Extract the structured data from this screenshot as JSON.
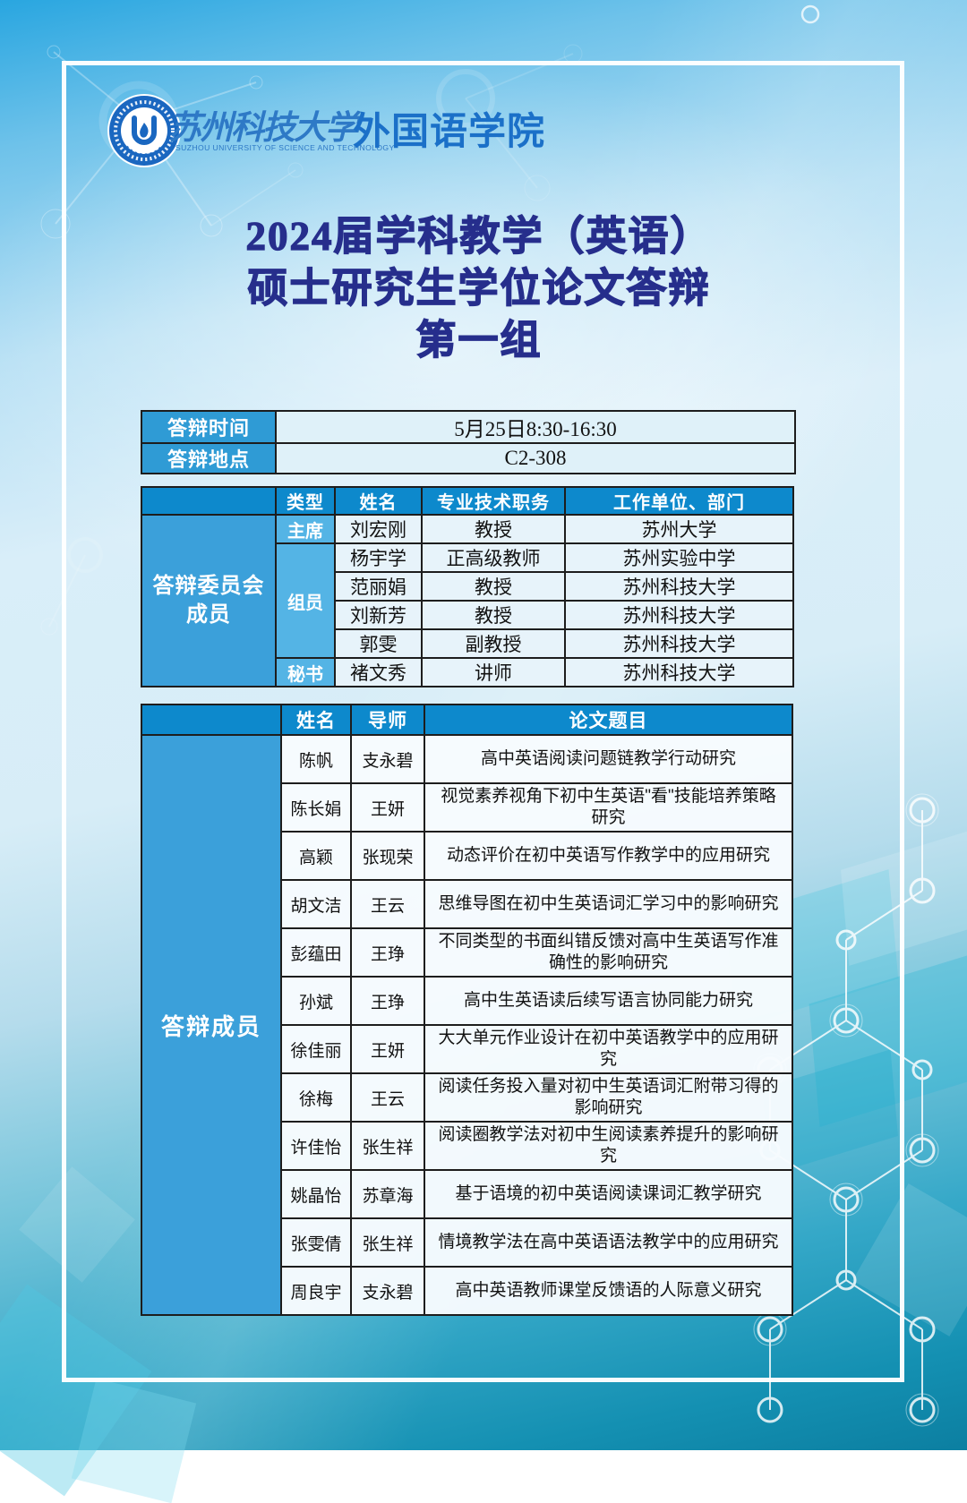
{
  "header": {
    "university_cn": "苏州科技大学",
    "university_en": "SUZHOU UNIVERSITY OF SCIENCE AND TECHNOLOGY",
    "college": "外国语学院"
  },
  "title": {
    "line1": "2024届学科教学（英语）",
    "line2": "硕士研究生学位论文答辩",
    "line3": "第一组"
  },
  "info": {
    "rows": [
      {
        "label": "答辩时间",
        "value": "5月25日8:30-16:30"
      },
      {
        "label": "答辩地点",
        "value": "C2-308"
      }
    ]
  },
  "committee": {
    "group_label": "答辩委员会成员",
    "headers": [
      "类型",
      "姓名",
      "专业技术职务",
      "工作单位、部门"
    ],
    "rows": [
      {
        "type": "主席",
        "type_span": 1,
        "name": "刘宏刚",
        "title": "教授",
        "org": "苏州大学"
      },
      {
        "type": "组员",
        "type_span": 4,
        "name": "杨宇学",
        "title": "正高级教师",
        "org": "苏州实验中学"
      },
      {
        "name": "范丽娟",
        "title": "教授",
        "org": "苏州科技大学"
      },
      {
        "name": "刘新芳",
        "title": "教授",
        "org": "苏州科技大学"
      },
      {
        "name": "郭雯",
        "title": "副教授",
        "org": "苏州科技大学"
      },
      {
        "type": "秘书",
        "type_span": 1,
        "name": "褚文秀",
        "title": "讲师",
        "org": "苏州科技大学"
      }
    ]
  },
  "students": {
    "group_label": "答辩成员",
    "headers": [
      "姓名",
      "导师",
      "论文题目"
    ],
    "rows": [
      {
        "name": "陈帆",
        "advisor": "支永碧",
        "thesis": "高中英语阅读问题链教学行动研究"
      },
      {
        "name": "陈长娟",
        "advisor": "王妍",
        "thesis": "视觉素养视角下初中生英语\"看\"技能培养策略研究"
      },
      {
        "name": "高颖",
        "advisor": "张现荣",
        "thesis": "动态评价在初中英语写作教学中的应用研究"
      },
      {
        "name": "胡文洁",
        "advisor": "王云",
        "thesis": "思维导图在初中生英语词汇学习中的影响研究"
      },
      {
        "name": "彭蕴田",
        "advisor": "王琤",
        "thesis": "不同类型的书面纠错反馈对高中生英语写作准确性的影响研究"
      },
      {
        "name": "孙斌",
        "advisor": "王琤",
        "thesis": "高中生英语读后续写语言协同能力研究"
      },
      {
        "name": "徐佳丽",
        "advisor": "王妍",
        "thesis": "大大单元作业设计在初中英语教学中的应用研究"
      },
      {
        "name": "徐梅",
        "advisor": "王云",
        "thesis": "阅读任务投入量对初中生英语词汇附带习得的影响研究"
      },
      {
        "name": "许佳怡",
        "advisor": "张生祥",
        "thesis": "阅读圈教学法对初中生阅读素养提升的影响研究"
      },
      {
        "name": "姚晶怡",
        "advisor": "苏章海",
        "thesis": "基于语境的初中英语阅读课词汇教学研究"
      },
      {
        "name": "张雯倩",
        "advisor": "张生祥",
        "thesis": "情境教学法在高中英语语法教学中的应用研究"
      },
      {
        "name": "周良宇",
        "advisor": "支永碧",
        "thesis": "高中英语教师课堂反馈语的人际意义研究"
      }
    ]
  },
  "colors": {
    "table_header_blue": "#0d89cc",
    "group_cell_blue": "#3ba0da",
    "type_cell_blue": "#54b4e5",
    "label_cell_blue": "#2f9bd5",
    "title_navy": "#262e8c",
    "college_blue": "#1b70c8",
    "logo_blue": "#1a67c0",
    "background_top": "#29a6e0",
    "background_bottom": "#0c7fa1"
  },
  "icons": {
    "logo": "university-emblem",
    "molecule": "molecule-network",
    "network": "node-network"
  }
}
